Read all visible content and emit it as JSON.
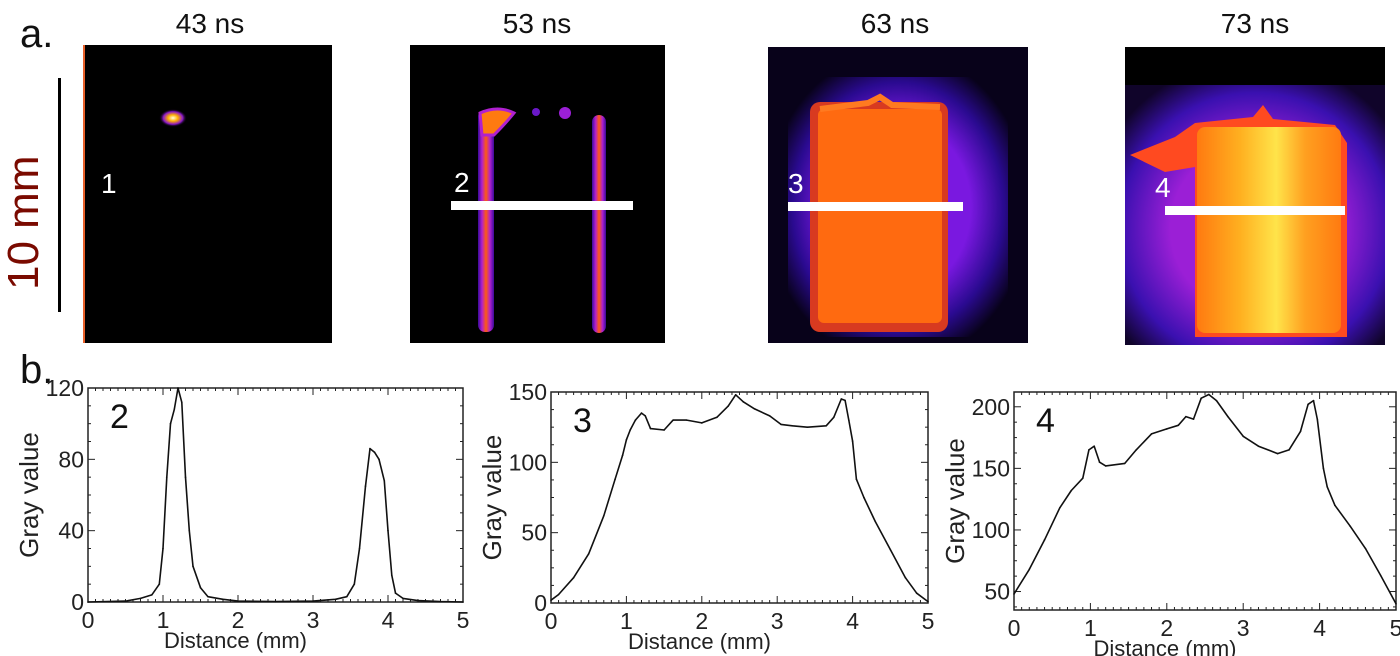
{
  "figure": {
    "panel_a_label": "a.",
    "panel_b_label": "b.",
    "scale_bar_label": "10 mm",
    "images": [
      {
        "time": "43 ns",
        "number": "1",
        "has_cut_line": false
      },
      {
        "time": "53 ns",
        "number": "2",
        "has_cut_line": true
      },
      {
        "time": "63 ns",
        "number": "3",
        "has_cut_line": true
      },
      {
        "time": "73 ns",
        "number": "4",
        "has_cut_line": true
      }
    ],
    "colors": {
      "background": "#000000",
      "glow_low": "#3a0a9a",
      "glow_mid": "#9b1fd6",
      "hot": "#ff5a10",
      "hotter": "#ff9a00",
      "hottest": "#ffe44a"
    }
  },
  "chart_data": [
    {
      "type": "line",
      "panel_number": "2",
      "xlabel": "Distance (mm)",
      "ylabel": "Gray value",
      "xlim": [
        0,
        5
      ],
      "ylim": [
        0,
        120
      ],
      "xticks": [
        "0",
        "1",
        "2",
        "3",
        "4",
        "5"
      ],
      "yticks": [
        "0",
        "40",
        "80",
        "120"
      ],
      "ytick_values": [
        0,
        40,
        80,
        120
      ],
      "x": [
        0,
        0.5,
        0.7,
        0.85,
        0.95,
        1.0,
        1.05,
        1.1,
        1.15,
        1.2,
        1.25,
        1.3,
        1.35,
        1.4,
        1.5,
        1.6,
        1.8,
        2.0,
        2.5,
        3.0,
        3.3,
        3.45,
        3.55,
        3.62,
        3.7,
        3.76,
        3.82,
        3.88,
        3.95,
        4.0,
        4.05,
        4.1,
        4.2,
        4.4,
        4.7,
        5.0
      ],
      "y": [
        0,
        0.5,
        2,
        4,
        10,
        30,
        70,
        100,
        108,
        120,
        112,
        70,
        40,
        20,
        8,
        3,
        1.5,
        0.5,
        0.3,
        0.5,
        1.5,
        3,
        10,
        30,
        65,
        86,
        84,
        80,
        68,
        40,
        15,
        5,
        2,
        0.8,
        0.2,
        0
      ]
    },
    {
      "type": "line",
      "panel_number": "3",
      "xlabel": "Distance (mm)",
      "ylabel": "Gray value",
      "xlim": [
        0,
        5
      ],
      "ylim": [
        0,
        150
      ],
      "xticks": [
        "0",
        "1",
        "2",
        "3",
        "4",
        "5"
      ],
      "yticks": [
        "0",
        "50",
        "100",
        "150"
      ],
      "ytick_values": [
        0,
        50,
        100,
        150
      ],
      "x": [
        0,
        0.1,
        0.3,
        0.5,
        0.7,
        0.85,
        0.95,
        1.0,
        1.05,
        1.12,
        1.2,
        1.25,
        1.32,
        1.5,
        1.62,
        1.8,
        2.0,
        2.2,
        2.35,
        2.45,
        2.55,
        2.7,
        2.9,
        3.05,
        3.2,
        3.4,
        3.65,
        3.75,
        3.85,
        3.9,
        3.95,
        4.0,
        4.05,
        4.15,
        4.3,
        4.5,
        4.7,
        4.85,
        5.0
      ],
      "y": [
        2,
        6,
        18,
        35,
        62,
        88,
        105,
        116,
        123,
        130,
        135,
        133,
        124,
        123,
        130,
        130,
        128,
        132,
        140,
        148,
        143,
        138,
        133,
        127,
        126,
        125,
        126,
        132,
        145,
        144,
        130,
        115,
        88,
        75,
        58,
        38,
        18,
        7,
        1
      ]
    },
    {
      "type": "line",
      "panel_number": "4",
      "xlabel": "Distance (mm)",
      "ylabel": "Gray value",
      "xlim": [
        0,
        5
      ],
      "ylim": [
        35,
        212
      ],
      "xticks": [
        "0",
        "1",
        "2",
        "3",
        "4",
        "5"
      ],
      "yticks": [
        "50",
        "100",
        "150",
        "200"
      ],
      "ytick_values": [
        50,
        100,
        150,
        200
      ],
      "x": [
        0,
        0.2,
        0.4,
        0.6,
        0.75,
        0.9,
        0.98,
        1.05,
        1.12,
        1.2,
        1.45,
        1.6,
        1.8,
        2.0,
        2.15,
        2.25,
        2.35,
        2.45,
        2.55,
        2.65,
        2.8,
        3.0,
        3.2,
        3.45,
        3.6,
        3.75,
        3.85,
        3.92,
        3.97,
        4.05,
        4.1,
        4.2,
        4.4,
        4.6,
        4.8,
        5.0
      ],
      "y": [
        48,
        68,
        92,
        118,
        132,
        142,
        165,
        168,
        155,
        152,
        154,
        165,
        178,
        182,
        185,
        192,
        190,
        207,
        210,
        205,
        192,
        176,
        168,
        162,
        165,
        180,
        202,
        205,
        190,
        150,
        135,
        120,
        103,
        85,
        63,
        40
      ]
    }
  ]
}
